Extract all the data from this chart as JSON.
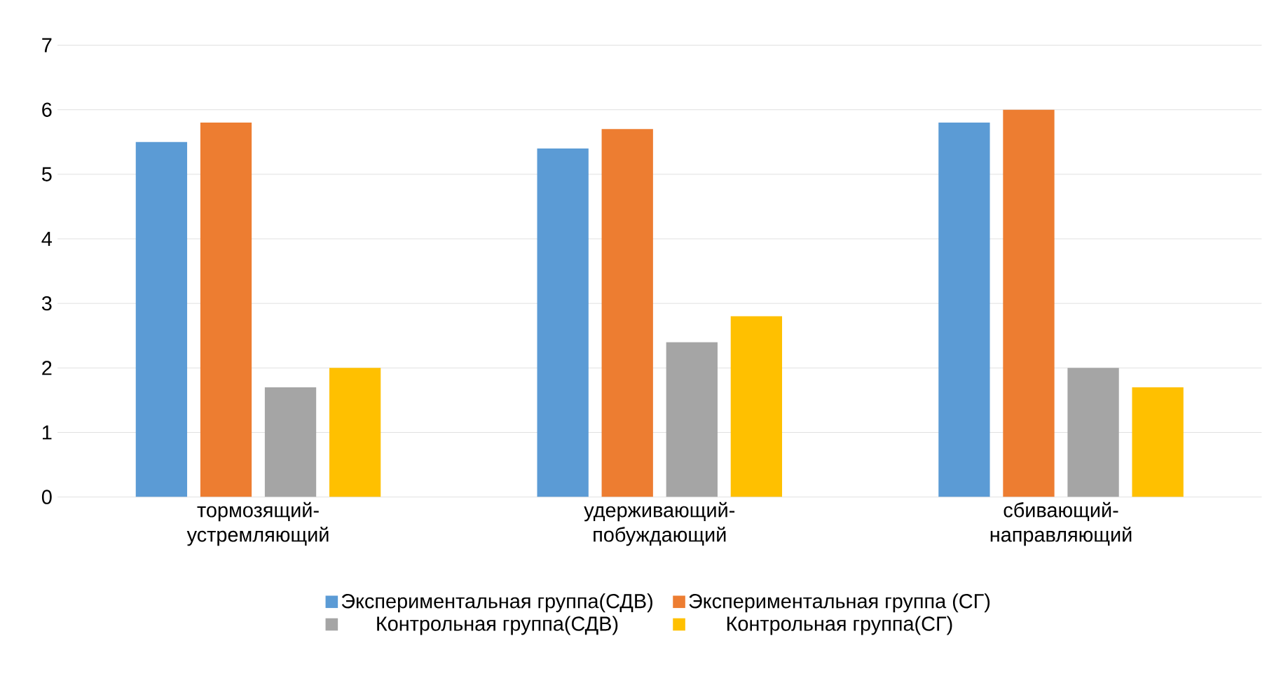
{
  "chart_data": {
    "type": "bar",
    "categories": [
      "тормозящий-устремляющий",
      "удерживающий-побуждающий",
      "сбивающий-направляющий"
    ],
    "series": [
      {
        "name": "Экспериментальная группа(СДВ)",
        "color": "#5b9bd5",
        "values": [
          5.5,
          5.4,
          5.8
        ]
      },
      {
        "name": "Экспериментальная группа (СГ)",
        "color": "#ed7d31",
        "values": [
          5.8,
          5.7,
          6.0
        ]
      },
      {
        "name": "Контрольная группа(СДВ)",
        "color": "#a5a5a5",
        "values": [
          1.7,
          2.4,
          2.0
        ]
      },
      {
        "name": "Контрольная группа(СГ)",
        "color": "#ffc000",
        "values": [
          2.0,
          2.8,
          1.7
        ]
      }
    ],
    "ylim": [
      0,
      7
    ],
    "yticks": [
      0,
      1,
      2,
      3,
      4,
      5,
      6,
      7
    ],
    "grid": "y",
    "legend": "bottom"
  }
}
